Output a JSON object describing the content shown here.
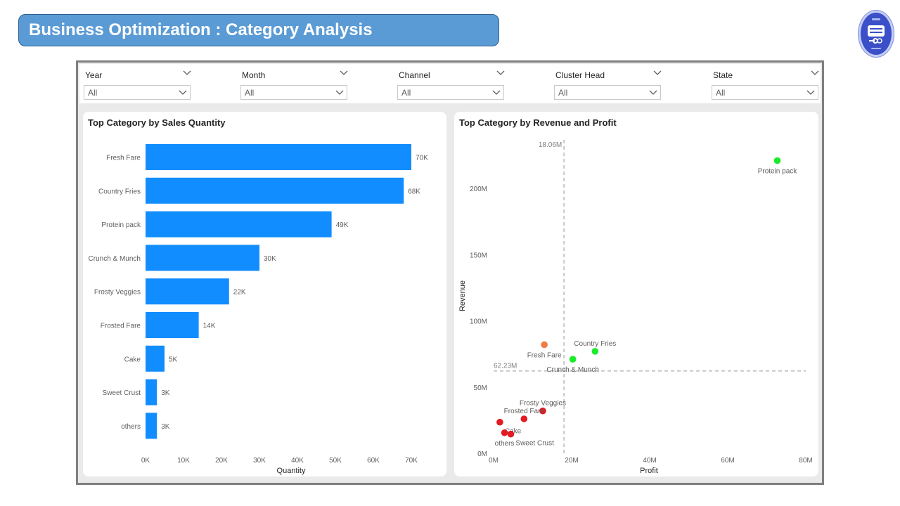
{
  "header": {
    "title": "Business Optimization : Category Analysis"
  },
  "logo": {
    "icon": "bulb-logo-icon"
  },
  "filters": [
    {
      "label": "Year",
      "value": "All"
    },
    {
      "label": "Month",
      "value": "All"
    },
    {
      "label": "Channel",
      "value": "All"
    },
    {
      "label": "Cluster Head",
      "value": "All"
    },
    {
      "label": "State",
      "value": "All"
    }
  ],
  "colors": {
    "bar": "#118dff",
    "green": "#1aeb2a",
    "orange": "#f07b43",
    "red": "#e01b22",
    "banner": "#5b9bd5",
    "panel_bg": "#eaeaea"
  },
  "chart_data": [
    {
      "type": "bar",
      "orientation": "horizontal",
      "title": "Top Category by Sales Quantity",
      "xlabel": "Quantity",
      "ylabel": "",
      "categories": [
        "Fresh Fare",
        "Country Fries",
        "Protein pack",
        "Crunch & Munch",
        "Frosty Veggies",
        "Frosted Fare",
        "Cake",
        "Sweet Crust",
        "others"
      ],
      "values": [
        70000,
        68000,
        49000,
        30000,
        22000,
        14000,
        5000,
        3000,
        3000
      ],
      "data_labels": [
        "70K",
        "68K",
        "49K",
        "30K",
        "22K",
        "14K",
        "5K",
        "3K",
        "3K"
      ],
      "xlim": [
        0,
        70000
      ],
      "x_ticks": [
        0,
        10000,
        20000,
        30000,
        40000,
        50000,
        60000,
        70000
      ],
      "x_tick_labels": [
        "0K",
        "10K",
        "20K",
        "30K",
        "40K",
        "50K",
        "60K",
        "70K"
      ],
      "grid": false
    },
    {
      "type": "scatter",
      "title": "Top Category by Revenue and Profit",
      "xlabel": "Profit",
      "ylabel": "Revenue",
      "xlim": [
        0,
        80000000
      ],
      "ylim": [
        0,
        225000000
      ],
      "x_ticks": [
        0,
        20000000,
        40000000,
        60000000,
        80000000
      ],
      "x_tick_labels": [
        "0M",
        "20M",
        "40M",
        "60M",
        "80M"
      ],
      "y_ticks": [
        0,
        50000000,
        100000000,
        150000000,
        200000000
      ],
      "y_tick_labels": [
        "0M",
        "50M",
        "100M",
        "150M",
        "200M"
      ],
      "reference_lines": [
        {
          "axis": "x",
          "value": 18060000,
          "label": "18.06M"
        },
        {
          "axis": "y",
          "value": 62230000,
          "label": "62.23M"
        }
      ],
      "points": [
        {
          "label": "Protein pack",
          "x": 72700000,
          "y": 221000000,
          "color": "#1aeb2a",
          "label_pos": "below"
        },
        {
          "label": "Country Fries",
          "x": 26000000,
          "y": 77000000,
          "color": "#1aeb2a",
          "label_pos": "above"
        },
        {
          "label": "Crunch & Munch",
          "x": 20300000,
          "y": 71000000,
          "color": "#1aeb2a",
          "label_pos": "below"
        },
        {
          "label": "Fresh Fare",
          "x": 13000000,
          "y": 82000000,
          "color": "#f07b43",
          "label_pos": "below"
        },
        {
          "label": "Frosty Veggies",
          "x": 12600000,
          "y": 32000000,
          "color": "#e01b22",
          "label_pos": "above"
        },
        {
          "label": "Frosted Fare",
          "x": 7800000,
          "y": 26000000,
          "color": "#e01b22",
          "label_pos": "above"
        },
        {
          "label": "Cake",
          "x": 1600000,
          "y": 23500000,
          "color": "#e01b22",
          "label_pos": "below-right"
        },
        {
          "label": "others",
          "x": 2800000,
          "y": 15500000,
          "color": "#e01b22",
          "label_pos": "below"
        },
        {
          "label": "Sweet Crust",
          "x": 4400000,
          "y": 14500000,
          "color": "#e01b22",
          "label_pos": "below-right"
        }
      ],
      "grid": false
    }
  ]
}
